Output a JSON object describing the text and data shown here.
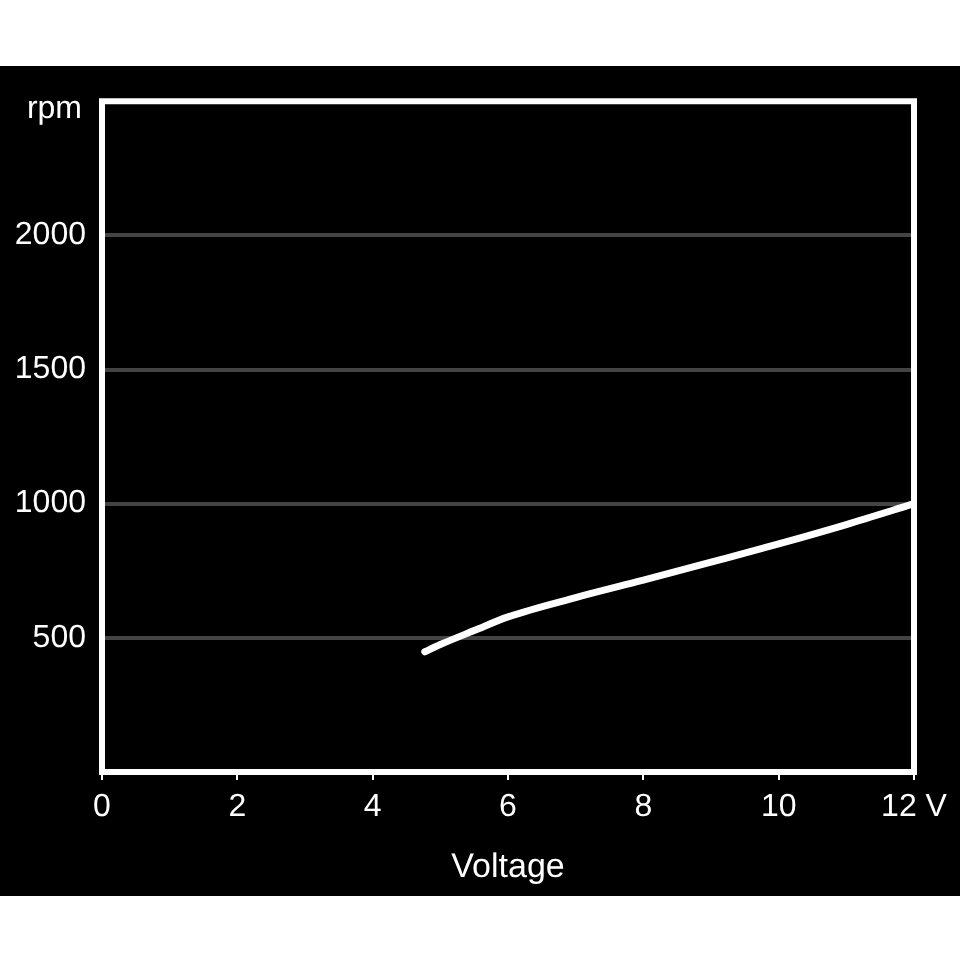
{
  "chart_data": {
    "type": "line",
    "xlabel": "Voltage",
    "ylabel": "rpm",
    "series": [
      {
        "color": "#ffffff",
        "x": [
          4.77,
          5,
          5.5,
          6,
          7,
          8,
          9,
          10,
          11,
          12
        ],
        "values": [
          448,
          475,
          527,
          578,
          650,
          715,
          782,
          850,
          922,
          1000
        ]
      }
    ],
    "xlim": [
      0,
      12
    ],
    "xticks": [
      0,
      2,
      4,
      6,
      8,
      10,
      {
        "value": 12,
        "label": "12 V"
      }
    ],
    "ylim": [
      0,
      2500
    ],
    "yticks": [
      500,
      1000,
      1500,
      2000
    ],
    "grid": "y",
    "legend": false,
    "marker": "none",
    "line_style": "solid"
  }
}
